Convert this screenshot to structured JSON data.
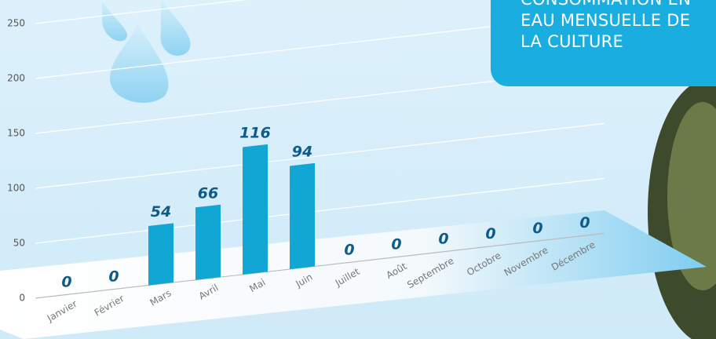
{
  "chart_data": {
    "type": "bar",
    "title": "CONSOMMATION EN EAU MENSUELLE DE LA CULTURE",
    "categories": [
      "Janvier",
      "Février",
      "Mars",
      "Avril",
      "Mai",
      "Juin",
      "Juillet",
      "Août",
      "Septembre",
      "Octobre",
      "Novembre",
      "Décembre"
    ],
    "values": [
      0,
      0,
      54,
      66,
      116,
      94,
      0,
      0,
      0,
      0,
      0,
      0
    ],
    "color": "#12a6d4",
    "ylim": [
      0,
      250
    ],
    "yticks": [
      0,
      50,
      100,
      150,
      200,
      250
    ],
    "grid": true
  }
}
